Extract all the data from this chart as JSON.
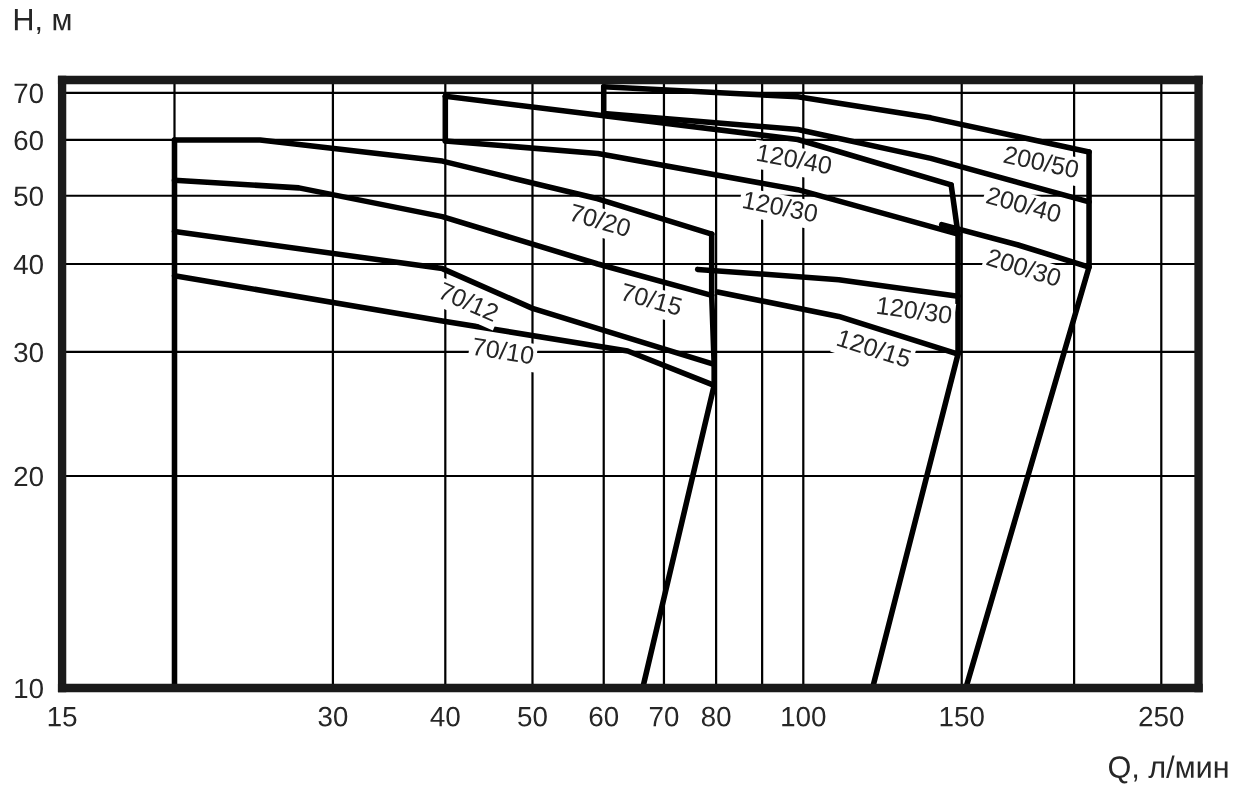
{
  "chart_data": {
    "type": "line",
    "xlabel": "Q, л/мин",
    "ylabel": "H, м",
    "log": "xy",
    "grid": true,
    "legend": false,
    "marker": "none",
    "line_style": "solid",
    "xlim": [
      15,
      275
    ],
    "ylim": [
      10,
      73
    ],
    "xticks": [
      15,
      30,
      40,
      50,
      60,
      70,
      80,
      100,
      150,
      250
    ],
    "yticks": [
      10,
      20,
      30,
      40,
      50,
      60,
      70
    ],
    "series": [
      {
        "name": "70/20",
        "color": "#000000",
        "x": [
          20,
          24.9,
          39.7,
          59.1,
          79.1
        ],
        "values": [
          60,
          60,
          56,
          49.5,
          44.1
        ]
      },
      {
        "name": "70/15",
        "color": "#000000",
        "x": [
          20,
          27.5,
          39.7,
          59.1,
          79.1
        ],
        "values": [
          52.6,
          51.3,
          46.7,
          40,
          36.1
        ]
      },
      {
        "name": "70/12",
        "color": "#000000",
        "x": [
          20,
          39.7,
          50,
          79.6
        ],
        "values": [
          44.5,
          39.4,
          34.6,
          28.8
        ]
      },
      {
        "name": "70/10",
        "color": "#000000",
        "x": [
          20,
          39.7,
          63.8,
          79.6
        ],
        "values": [
          38.5,
          33.2,
          30.1,
          26.9
        ]
      },
      {
        "name": "120/40",
        "color": "#000000",
        "x": [
          40,
          59.1,
          98.6,
          146
        ],
        "values": [
          69.2,
          65.1,
          60.1,
          51.8
        ]
      },
      {
        "name": "120/30",
        "color": "#000000",
        "x": [
          40,
          59.1,
          98.6,
          148.6
        ],
        "values": [
          59.8,
          57.4,
          51,
          44.1
        ]
      },
      {
        "name": "120/30",
        "color": "#000000",
        "x": [
          76.3,
          109.5,
          148.6
        ],
        "values": [
          39.3,
          38,
          36
        ]
      },
      {
        "name": "120/15",
        "color": "#000000",
        "x": [
          80.3,
          109.5,
          148.6
        ],
        "values": [
          36.5,
          33.7,
          29.8
        ]
      },
      {
        "name": "200/50",
        "color": "#000000",
        "x": [
          60,
          98.6,
          138.6,
          207.8
        ],
        "values": [
          71.4,
          69.1,
          64.5,
          57.7
        ]
      },
      {
        "name": "200/40",
        "color": "#000000",
        "x": [
          60,
          98.6,
          138.6,
          207.8
        ],
        "values": [
          65.4,
          62.1,
          56.5,
          49
        ]
      },
      {
        "name": "200/30",
        "color": "#000000",
        "x": [
          142.5,
          173,
          207.8
        ],
        "values": [
          45.5,
          42.6,
          39.6
        ]
      },
      {
        "color": "#000000",
        "x": [
          20,
          20
        ],
        "values": [
          10,
          60
        ]
      },
      {
        "color": "#000000",
        "x": [
          40,
          40
        ],
        "values": [
          59.8,
          69.2
        ]
      },
      {
        "color": "#000000",
        "x": [
          60,
          60
        ],
        "values": [
          65.4,
          71.4
        ]
      },
      {
        "color": "#000000",
        "x": [
          66.3,
          79.6,
          79.6,
          79.1,
          79.1
        ],
        "values": [
          10,
          26.9,
          28.8,
          36.1,
          44.1
        ]
      },
      {
        "color": "#000000",
        "x": [
          119.4,
          148.6,
          148.6,
          148.6,
          146
        ],
        "values": [
          10,
          29.8,
          36,
          44.1,
          51.8
        ]
      },
      {
        "color": "#000000",
        "x": [
          151.6,
          207.8,
          207.8,
          207.8
        ],
        "values": [
          10,
          39.6,
          49,
          57.7
        ]
      }
    ]
  }
}
